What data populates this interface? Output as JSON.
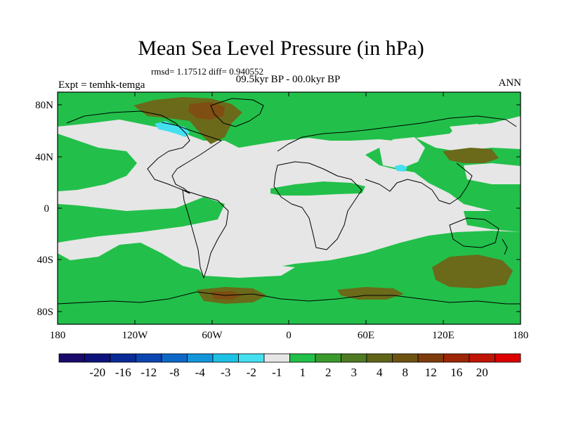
{
  "title": "Mean Sea Level Pressure (in hPa)",
  "stats": "rmsd= 1.17512 diff= 0.940552",
  "period": "09.5kyr BP - 00.0kyr BP",
  "experiment": "Expt = temhk-temga",
  "season": "ANN",
  "map": {
    "projection": "cylindrical-equidistant",
    "lon_range": [
      -180,
      180
    ],
    "lat_range": [
      -90,
      90
    ],
    "lat_ticks": [
      {
        "value": 80,
        "label": "80N"
      },
      {
        "value": 40,
        "label": "40N"
      },
      {
        "value": 0,
        "label": "0"
      },
      {
        "value": -40,
        "label": "40S"
      },
      {
        "value": -80,
        "label": "80S"
      }
    ],
    "lon_ticks": [
      {
        "value": -180,
        "label": "180"
      },
      {
        "value": -120,
        "label": "120W"
      },
      {
        "value": -60,
        "label": "60W"
      },
      {
        "value": 0,
        "label": "0"
      },
      {
        "value": 60,
        "label": "60E"
      },
      {
        "value": 120,
        "label": "120E"
      },
      {
        "value": 180,
        "label": "180"
      }
    ]
  },
  "colorbar": {
    "colors": [
      "#1a0a6b",
      "#0d137a",
      "#0a2a96",
      "#0b45b0",
      "#0d68c6",
      "#1295db",
      "#1cc2e6",
      "#44e0f0",
      "#e6e6e6",
      "#22c04a",
      "#3a9a2c",
      "#4e7a22",
      "#5f6418",
      "#6e5212",
      "#7e3c0c",
      "#9c2606",
      "#c01404",
      "#dc0000"
    ],
    "labels": [
      "-20",
      "-16",
      "-12",
      "-8",
      "-4",
      "-3",
      "-2",
      "-1",
      "1",
      "2",
      "3",
      "4",
      "8",
      "12",
      "16",
      "20"
    ]
  }
}
